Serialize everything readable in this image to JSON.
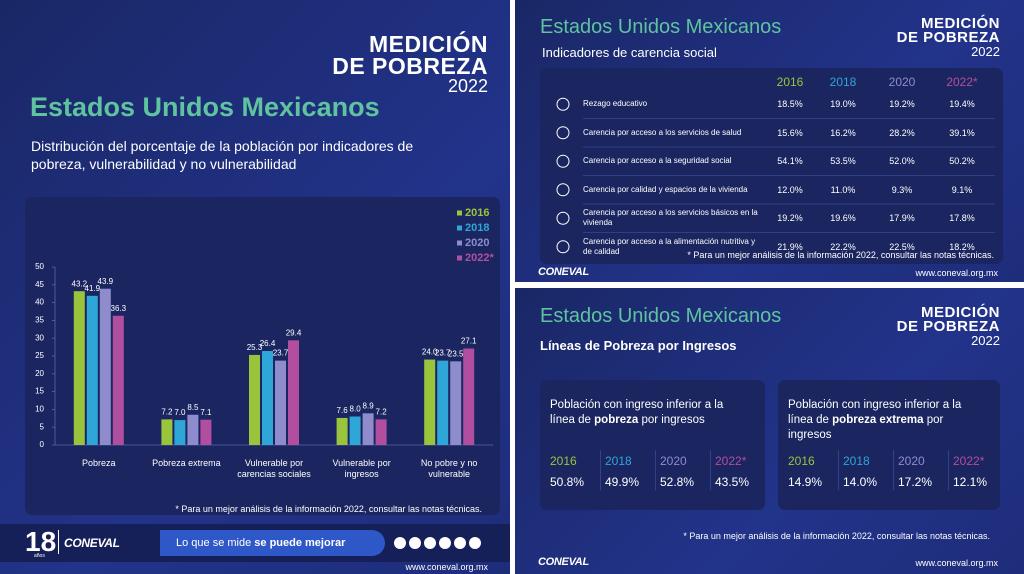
{
  "brand": {
    "logo_line1": "MEDICIÓN",
    "logo_line2": "DE POBREZA",
    "logo_year": "2022",
    "org": "CONEVAL",
    "anniversary_number": "18",
    "anniversary_word": "años",
    "slogan_plain": "Lo que se mide",
    "slogan_bold": "se puede mejorar",
    "website": "www.coneval.org.mx",
    "footnote": "* Para un mejor análisis de la información 2022, consultar las notas técnicas."
  },
  "chart_data": {
    "type": "bar",
    "title": "Estados Unidos Mexicanos",
    "subtitle": "Distribución del porcentaje de la población por indicadores de pobreza, vulnerabilidad y no vulnerabilidad",
    "categories": [
      "Pobreza",
      "Pobreza extrema",
      "Vulnerable por carencias sociales",
      "Vulnerable por ingresos",
      "No pobre y no vulnerable"
    ],
    "series": [
      {
        "name": "2016",
        "color": "#9ac43c",
        "values": [
          43.2,
          7.2,
          25.3,
          7.6,
          24.0
        ],
        "value_labels": [
          "43.2",
          "7.2",
          "25.3",
          "7.6",
          "24.0"
        ]
      },
      {
        "name": "2018",
        "color": "#2ea6d8",
        "values": [
          41.9,
          7.0,
          26.4,
          8.0,
          23.7
        ],
        "value_labels": [
          "41.9",
          "7.0",
          "26.4",
          "8.0",
          "23.7"
        ]
      },
      {
        "name": "2020",
        "color": "#8e8ccc",
        "values": [
          43.9,
          8.5,
          23.7,
          8.9,
          23.5
        ],
        "value_labels": [
          "43.9",
          "8.5",
          "23.7",
          "8.9",
          "23.5"
        ]
      },
      {
        "name": "2022*",
        "color": "#b24e9f",
        "values": [
          36.3,
          7.1,
          29.4,
          7.2,
          27.1
        ],
        "value_labels": [
          "36.3",
          "7.1",
          "29.4",
          "7.2",
          "27.1"
        ]
      }
    ],
    "ylim": [
      0,
      50
    ],
    "yticks": [
      0,
      5,
      10,
      15,
      20,
      25,
      30,
      35,
      40,
      45,
      50
    ],
    "grid": false,
    "legend": "top-right"
  },
  "social_indicators": {
    "subtitle": "Indicadores de carencia social",
    "rows": [
      {
        "label": "Rezago educativo",
        "values": [
          "18.5%",
          "19.0%",
          "19.2%",
          "19.4%"
        ]
      },
      {
        "label": "Carencia por acceso a los servicios de salud",
        "values": [
          "15.6%",
          "16.2%",
          "28.2%",
          "39.1%"
        ]
      },
      {
        "label": "Carencia por acceso a la seguridad social",
        "values": [
          "54.1%",
          "53.5%",
          "52.0%",
          "50.2%"
        ]
      },
      {
        "label": "Carencia por calidad y espacios de la vivienda",
        "values": [
          "12.0%",
          "11.0%",
          "9.3%",
          "9.1%"
        ]
      },
      {
        "label": "Carencia por acceso a los servicios básicos en la vivienda",
        "values": [
          "19.2%",
          "19.6%",
          "17.9%",
          "17.8%"
        ]
      },
      {
        "label": "Carencia por acceso a la alimentación nutritiva y de calidad",
        "values": [
          "21.9%",
          "22.2%",
          "22.5%",
          "18.2%"
        ]
      }
    ]
  },
  "income_lines": {
    "subtitle": "Líneas de Pobreza por Ingresos",
    "cards": [
      {
        "text_before": "Población con ingreso inferior a la línea de",
        "text_bold": "pobreza",
        "text_after": "por ingresos",
        "values": [
          "50.8%",
          "49.9%",
          "52.8%",
          "43.5%"
        ]
      },
      {
        "text_before": "Población con ingreso inferior a la línea de",
        "text_bold": "pobreza extrema",
        "text_after": "por ingresos",
        "values": [
          "14.9%",
          "14.0%",
          "17.2%",
          "12.1%"
        ]
      }
    ]
  }
}
